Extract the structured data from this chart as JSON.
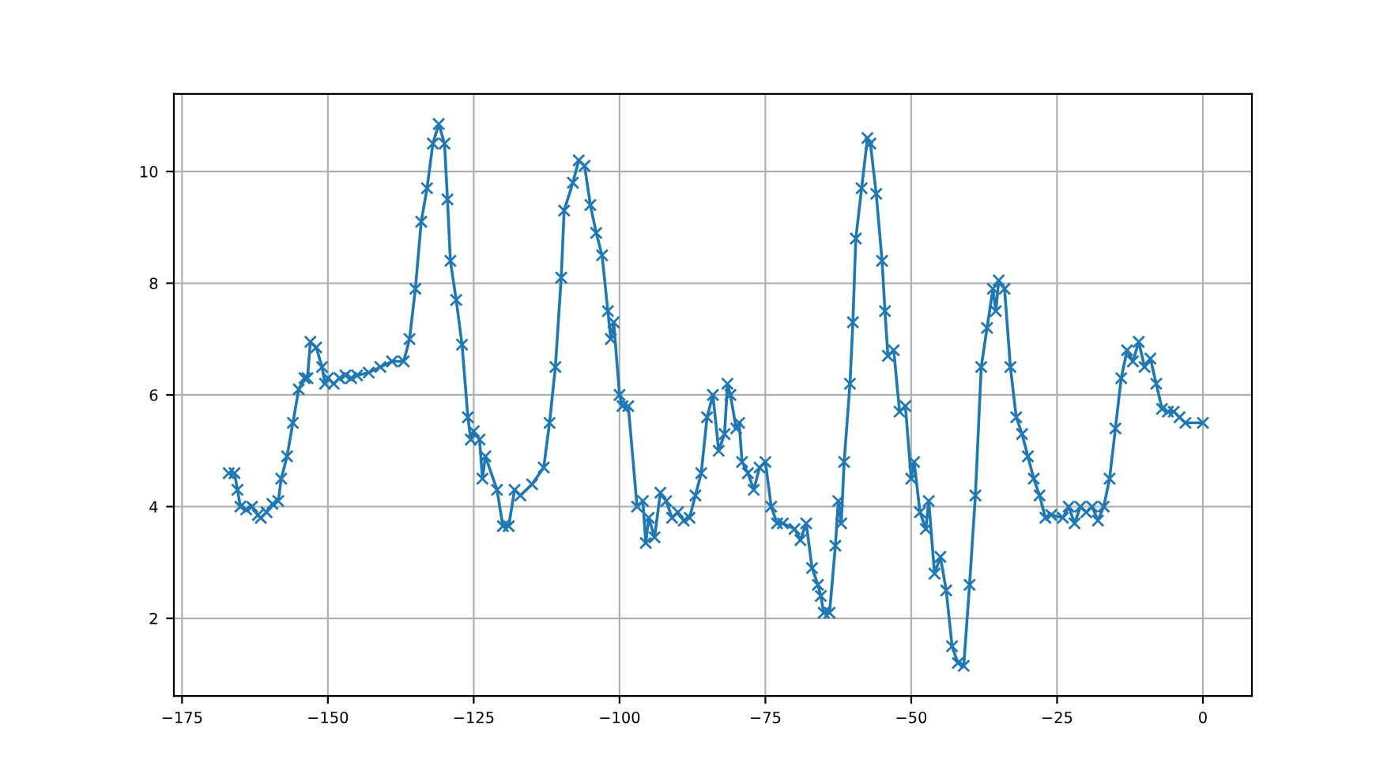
{
  "chart_data": {
    "type": "line",
    "marker": "cross",
    "grid": true,
    "xlim": [
      -176.4,
      8.4
    ],
    "ylim": [
      0.61,
      11.39
    ],
    "xticks": [
      {
        "value": -175,
        "label": "−175"
      },
      {
        "value": -150,
        "label": "−150"
      },
      {
        "value": -125,
        "label": "−125"
      },
      {
        "value": -100,
        "label": "−100"
      },
      {
        "value": -75,
        "label": "−75"
      },
      {
        "value": -50,
        "label": "−50"
      },
      {
        "value": -25,
        "label": "−25"
      },
      0
    ],
    "yticks": [
      2,
      4,
      6,
      8,
      10
    ],
    "series": [
      {
        "color": "#1f77b4",
        "x": [
          -167,
          -166,
          -165.5,
          -165,
          -164,
          -163,
          -162,
          -161.5,
          -160.5,
          -159.5,
          -158.5,
          -158,
          -157,
          -156,
          -155,
          -154,
          -153.5,
          -153,
          -152,
          -151,
          -150.5,
          -150,
          -149,
          -148,
          -147,
          -146,
          -145,
          -143,
          -141,
          -139,
          -137,
          -136,
          -135,
          -134,
          -133,
          -132,
          -131,
          -130,
          -129.5,
          -129,
          -128,
          -127,
          -126,
          -125.5,
          -125,
          -124,
          -123.5,
          -123,
          -121,
          -120,
          -119,
          -118,
          -117,
          -115,
          -113,
          -112,
          -111,
          -110,
          -109.5,
          -108,
          -107,
          -106,
          -105,
          -104,
          -103,
          -102,
          -101.5,
          -101,
          -100,
          -99.5,
          -98.5,
          -97,
          -96,
          -95.5,
          -95,
          -94,
          -93,
          -92,
          -91,
          -90,
          -89,
          -88,
          -87,
          -86,
          -85,
          -84,
          -83,
          -82,
          -81.5,
          -81,
          -80,
          -79.5,
          -79,
          -78,
          -77,
          -76,
          -75,
          -74,
          -73,
          -72,
          -70,
          -69,
          -68,
          -67,
          -66,
          -65.5,
          -65,
          -64,
          -63,
          -62.5,
          -62,
          -61.5,
          -60.5,
          -60,
          -59.5,
          -58.5,
          -57.5,
          -57,
          -56,
          -55,
          -54.5,
          -54,
          -53,
          -52,
          -51,
          -50,
          -49.5,
          -48.5,
          -47.5,
          -47,
          -46,
          -45,
          -44,
          -43,
          -42,
          -41,
          -40,
          -39,
          -38,
          -37,
          -36,
          -35.5,
          -35,
          -34,
          -33,
          -32,
          -31,
          -30,
          -29,
          -28,
          -27,
          -26,
          -24,
          -23,
          -22,
          -21,
          -20,
          -19,
          -18,
          -17,
          -16,
          -15,
          -14,
          -13,
          -12,
          -11,
          -10,
          -9,
          -8,
          -7,
          -6,
          -5,
          -4,
          -3,
          0
        ],
        "values": [
          4.6,
          4.6,
          4.3,
          4.0,
          3.95,
          4.0,
          3.85,
          3.8,
          3.9,
          4.05,
          4.1,
          4.5,
          4.9,
          5.5,
          6.1,
          6.3,
          6.3,
          6.95,
          6.85,
          6.5,
          6.2,
          6.3,
          6.2,
          6.3,
          6.35,
          6.3,
          6.35,
          6.4,
          6.5,
          6.6,
          6.6,
          7.0,
          7.9,
          9.1,
          9.7,
          10.5,
          10.85,
          10.5,
          9.5,
          8.4,
          7.7,
          6.9,
          5.6,
          5.2,
          5.35,
          5.2,
          4.5,
          4.9,
          4.3,
          3.65,
          3.65,
          4.3,
          4.2,
          4.4,
          4.7,
          5.5,
          6.5,
          8.1,
          9.3,
          9.8,
          10.2,
          10.1,
          9.4,
          8.9,
          8.5,
          7.5,
          7.0,
          7.3,
          6.0,
          5.8,
          5.8,
          4.0,
          4.1,
          3.35,
          3.8,
          3.45,
          4.25,
          4.1,
          3.8,
          3.9,
          3.75,
          3.8,
          4.2,
          4.6,
          5.6,
          6.0,
          5.0,
          5.3,
          6.2,
          6.0,
          5.4,
          5.5,
          4.8,
          4.6,
          4.3,
          4.7,
          4.8,
          4.0,
          3.7,
          3.7,
          3.6,
          3.4,
          3.7,
          2.9,
          2.6,
          2.4,
          2.1,
          2.1,
          3.3,
          4.1,
          3.7,
          4.8,
          6.2,
          7.3,
          8.8,
          9.7,
          10.6,
          10.5,
          9.6,
          8.4,
          7.5,
          6.7,
          6.8,
          5.7,
          5.8,
          4.5,
          4.8,
          3.9,
          3.6,
          4.1,
          2.8,
          3.1,
          2.5,
          1.5,
          1.2,
          1.15,
          2.6,
          4.2,
          6.5,
          7.2,
          7.9,
          7.5,
          8.05,
          7.9,
          6.5,
          5.6,
          5.3,
          4.9,
          4.5,
          4.2,
          3.8,
          3.85,
          3.8,
          4.0,
          3.7,
          4.0,
          3.9,
          4.0,
          3.75,
          4.0,
          4.5,
          5.4,
          6.3,
          6.8,
          6.6,
          6.95,
          6.5,
          6.65,
          6.2,
          5.75,
          5.7,
          5.7,
          5.6,
          5.5,
          5.5
        ]
      }
    ]
  }
}
